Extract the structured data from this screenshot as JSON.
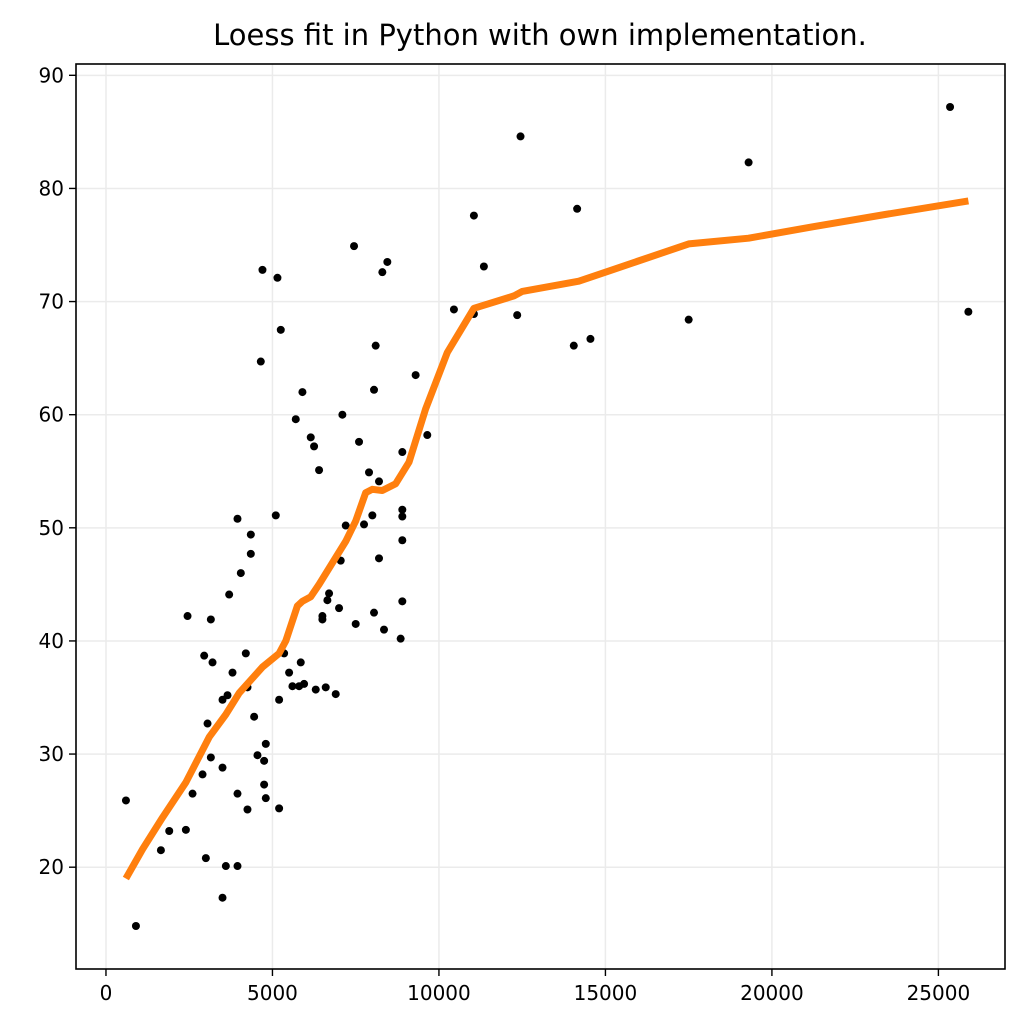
{
  "chart_data": {
    "type": "scatter",
    "title": "Loess fit in Python with own implementation.",
    "xlabel": "",
    "ylabel": "",
    "xlim": [
      -900,
      27000
    ],
    "ylim": [
      11,
      91
    ],
    "xticks": [
      0,
      5000,
      10000,
      15000,
      20000,
      25000
    ],
    "yticks": [
      20,
      30,
      40,
      50,
      60,
      70,
      80,
      90
    ],
    "grid": true,
    "colors": {
      "points": "#000000",
      "fit": "#ff7f0e"
    },
    "series": [
      {
        "type": "scatter",
        "points": [
          [
            600,
            25.9
          ],
          [
            900,
            14.8
          ],
          [
            1650,
            21.5
          ],
          [
            1900,
            23.2
          ],
          [
            2400,
            23.3
          ],
          [
            2450,
            42.2
          ],
          [
            2600,
            26.5
          ],
          [
            2900,
            28.2
          ],
          [
            2950,
            38.7
          ],
          [
            3000,
            20.8
          ],
          [
            3050,
            32.7
          ],
          [
            3150,
            29.7
          ],
          [
            3150,
            41.9
          ],
          [
            3200,
            38.1
          ],
          [
            3500,
            28.8
          ],
          [
            3500,
            17.3
          ],
          [
            3500,
            34.8
          ],
          [
            3600,
            20.1
          ],
          [
            3650,
            35.2
          ],
          [
            3700,
            44.1
          ],
          [
            3800,
            37.2
          ],
          [
            3950,
            26.5
          ],
          [
            3950,
            50.8
          ],
          [
            3950,
            20.1
          ],
          [
            4050,
            46.0
          ],
          [
            4200,
            38.9
          ],
          [
            4250,
            25.1
          ],
          [
            4250,
            35.9
          ],
          [
            4350,
            49.4
          ],
          [
            4350,
            47.7
          ],
          [
            4450,
            33.3
          ],
          [
            4550,
            29.9
          ],
          [
            4650,
            64.7
          ],
          [
            4700,
            72.8
          ],
          [
            4750,
            27.3
          ],
          [
            4750,
            29.4
          ],
          [
            4800,
            30.9
          ],
          [
            4800,
            26.1
          ],
          [
            5100,
            51.1
          ],
          [
            5150,
            72.1
          ],
          [
            5200,
            25.2
          ],
          [
            5200,
            34.8
          ],
          [
            5250,
            67.5
          ],
          [
            5350,
            38.9
          ],
          [
            5500,
            37.2
          ],
          [
            5600,
            36.0
          ],
          [
            5700,
            59.6
          ],
          [
            5800,
            36.0
          ],
          [
            5850,
            38.1
          ],
          [
            5900,
            62.0
          ],
          [
            5950,
            36.2
          ],
          [
            6150,
            58.0
          ],
          [
            6250,
            57.2
          ],
          [
            6300,
            35.7
          ],
          [
            6400,
            55.1
          ],
          [
            6500,
            41.9
          ],
          [
            6500,
            42.2
          ],
          [
            6600,
            35.9
          ],
          [
            6650,
            43.6
          ],
          [
            6700,
            44.2
          ],
          [
            6900,
            35.3
          ],
          [
            7000,
            42.9
          ],
          [
            7050,
            47.1
          ],
          [
            7100,
            60.0
          ],
          [
            7200,
            50.2
          ],
          [
            7450,
            74.9
          ],
          [
            7500,
            41.5
          ],
          [
            7600,
            57.6
          ],
          [
            7750,
            50.3
          ],
          [
            7900,
            54.9
          ],
          [
            8000,
            51.1
          ],
          [
            8050,
            62.2
          ],
          [
            8050,
            42.5
          ],
          [
            8100,
            66.1
          ],
          [
            8200,
            47.3
          ],
          [
            8200,
            54.1
          ],
          [
            8300,
            72.6
          ],
          [
            8350,
            41.0
          ],
          [
            8450,
            73.5
          ],
          [
            8850,
            40.2
          ],
          [
            8900,
            48.9
          ],
          [
            8900,
            43.5
          ],
          [
            8900,
            56.7
          ],
          [
            8900,
            51.0
          ],
          [
            8900,
            51.6
          ],
          [
            9300,
            63.5
          ],
          [
            9650,
            58.2
          ],
          [
            10450,
            69.3
          ],
          [
            11050,
            77.6
          ],
          [
            11050,
            68.9
          ],
          [
            11350,
            73.1
          ],
          [
            12350,
            68.8
          ],
          [
            12450,
            84.6
          ],
          [
            14050,
            66.1
          ],
          [
            14150,
            78.2
          ],
          [
            14550,
            66.7
          ],
          [
            17500,
            68.4
          ],
          [
            19300,
            82.3
          ],
          [
            25350,
            87.2
          ],
          [
            25900,
            69.1
          ]
        ]
      },
      {
        "type": "line",
        "points": [
          [
            600,
            19.0
          ],
          [
            1100,
            21.6
          ],
          [
            1700,
            24.4
          ],
          [
            2400,
            27.5
          ],
          [
            3100,
            31.5
          ],
          [
            3600,
            33.5
          ],
          [
            4000,
            35.4
          ],
          [
            4700,
            37.7
          ],
          [
            5200,
            38.9
          ],
          [
            5400,
            40.0
          ],
          [
            5750,
            43.1
          ],
          [
            5900,
            43.5
          ],
          [
            6150,
            43.9
          ],
          [
            6400,
            45.0
          ],
          [
            6800,
            46.9
          ],
          [
            7200,
            48.8
          ],
          [
            7500,
            50.6
          ],
          [
            7800,
            53.1
          ],
          [
            8000,
            53.4
          ],
          [
            8300,
            53.3
          ],
          [
            8700,
            53.9
          ],
          [
            9100,
            55.8
          ],
          [
            9600,
            60.5
          ],
          [
            10250,
            65.5
          ],
          [
            11050,
            69.4
          ],
          [
            12250,
            70.5
          ],
          [
            12500,
            70.9
          ],
          [
            14200,
            71.8
          ],
          [
            15200,
            72.8
          ],
          [
            17500,
            75.1
          ],
          [
            19300,
            75.6
          ],
          [
            21200,
            76.6
          ],
          [
            23400,
            77.7
          ],
          [
            25900,
            78.9
          ]
        ]
      }
    ]
  }
}
